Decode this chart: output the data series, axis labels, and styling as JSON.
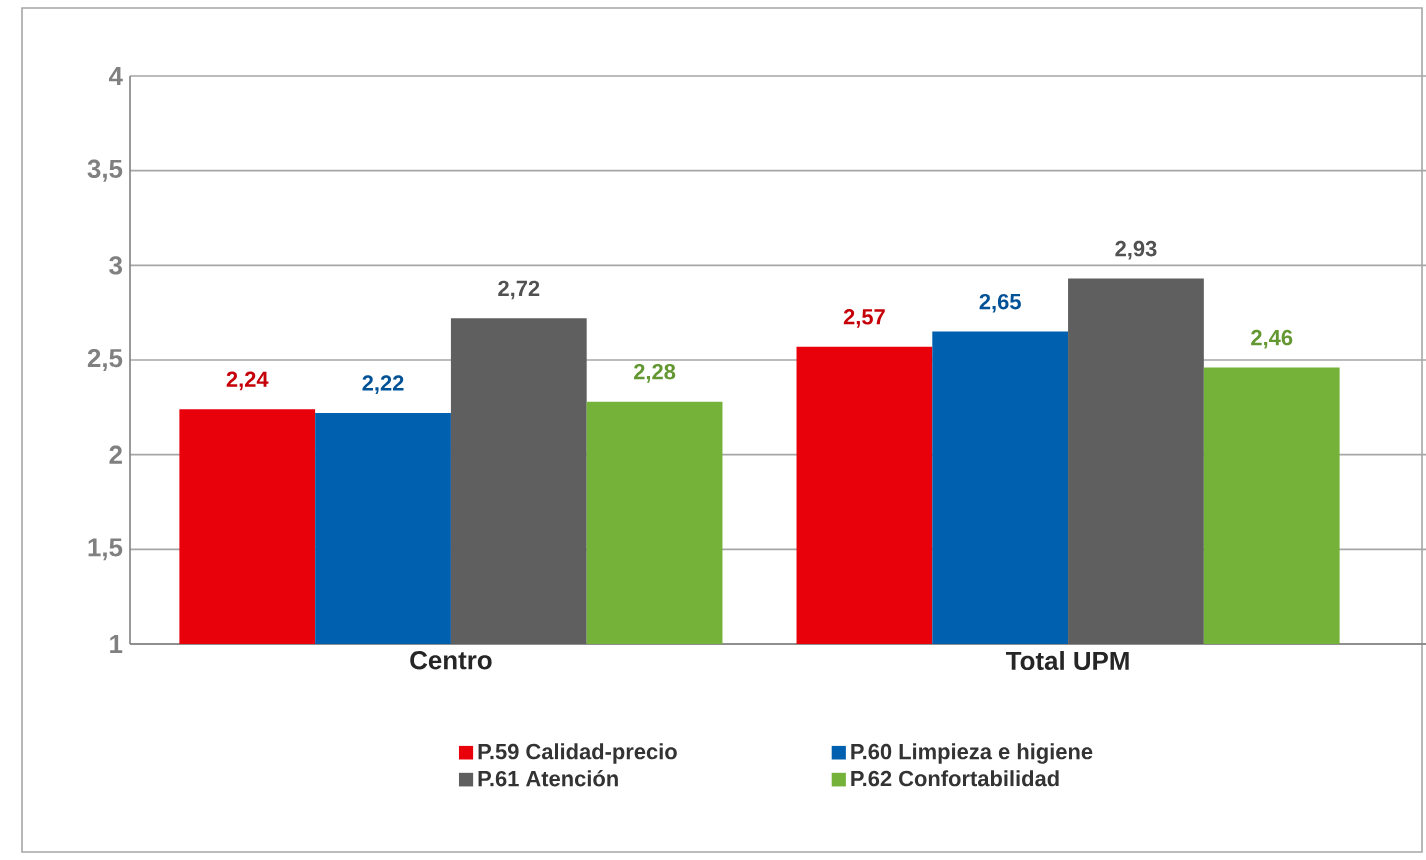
{
  "chart_data": {
    "type": "bar",
    "categories": [
      "Centro",
      "Total UPM"
    ],
    "series": [
      {
        "name": "P.59   Calidad-precio",
        "color": "#e8000b",
        "values": [
          2.24,
          2.57
        ],
        "value_labels": [
          "2,24",
          "2,57"
        ]
      },
      {
        "name": "P.60    Limpieza e higiene",
        "color": "#0060b0",
        "values": [
          2.22,
          2.65
        ],
        "value_labels": [
          "2,22",
          "2,65"
        ]
      },
      {
        "name": "P.61   Atención",
        "color": "#5f5f5f",
        "values": [
          2.72,
          2.93
        ],
        "value_labels": [
          "2,72",
          "2,93"
        ]
      },
      {
        "name": "P.62   Confortabilidad",
        "color": "#74b23a",
        "values": [
          2.28,
          2.46
        ],
        "value_labels": [
          "2,28",
          "2,46"
        ]
      }
    ],
    "ylim": [
      1,
      4
    ],
    "yticks": [
      1,
      {
        "value": 1.5,
        "label": "1,5"
      },
      2,
      {
        "value": 2.5,
        "label": "2,5"
      },
      3,
      {
        "value": 3.5,
        "label": "3,5"
      },
      4
    ],
    "grid": "y",
    "legend": "bottom"
  }
}
